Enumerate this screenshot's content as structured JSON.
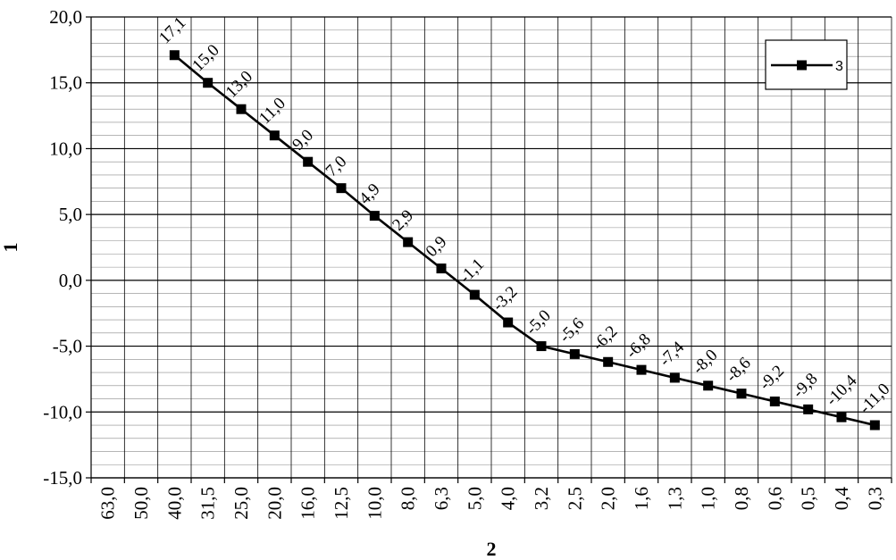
{
  "chart_data": {
    "type": "line",
    "title": "",
    "xlabel": "2",
    "ylabel": "1",
    "ylim": [
      -15,
      20
    ],
    "y_ticks": [
      "20,0",
      "15,0",
      "10,0",
      "5,0",
      "0,0",
      "-5,0",
      "-10,0",
      "-15,0"
    ],
    "y_tick_values": [
      20,
      15,
      10,
      5,
      0,
      -5,
      -10,
      -15
    ],
    "y_minor_step": 1,
    "categories": [
      "63,0",
      "50,0",
      "40,0",
      "31,5",
      "25,0",
      "20,0",
      "16,0",
      "12,5",
      "10,0",
      "8,0",
      "6,3",
      "5,0",
      "4,0",
      "3,2",
      "2,5",
      "2,0",
      "1,6",
      "1,3",
      "1,0",
      "0,8",
      "0,6",
      "0,5",
      "0,4",
      "0,3"
    ],
    "grid": true,
    "legend_position": "top-right",
    "series": [
      {
        "name": "3",
        "color": "#000000",
        "marker": "square",
        "values": [
          null,
          null,
          17.1,
          15.0,
          13.0,
          11.0,
          9.0,
          7.0,
          4.9,
          2.9,
          0.9,
          -1.1,
          -3.2,
          -5.0,
          -5.6,
          -6.2,
          -6.8,
          -7.4,
          -8.0,
          -8.6,
          -9.2,
          -9.8,
          -10.4,
          -11.0
        ],
        "labels": [
          null,
          null,
          "17,1",
          "15,0",
          "13,0",
          "11,0",
          "9,0",
          "7,0",
          "4,9",
          "2,9",
          "0,9",
          "-1,1",
          "-3,2",
          "-5,0",
          "-5,6",
          "-6,2",
          "-6,8",
          "-7,4",
          "-8,0",
          "-8,6",
          "-9,2",
          "-9,8",
          "-10,4",
          "-11,0"
        ]
      }
    ]
  }
}
